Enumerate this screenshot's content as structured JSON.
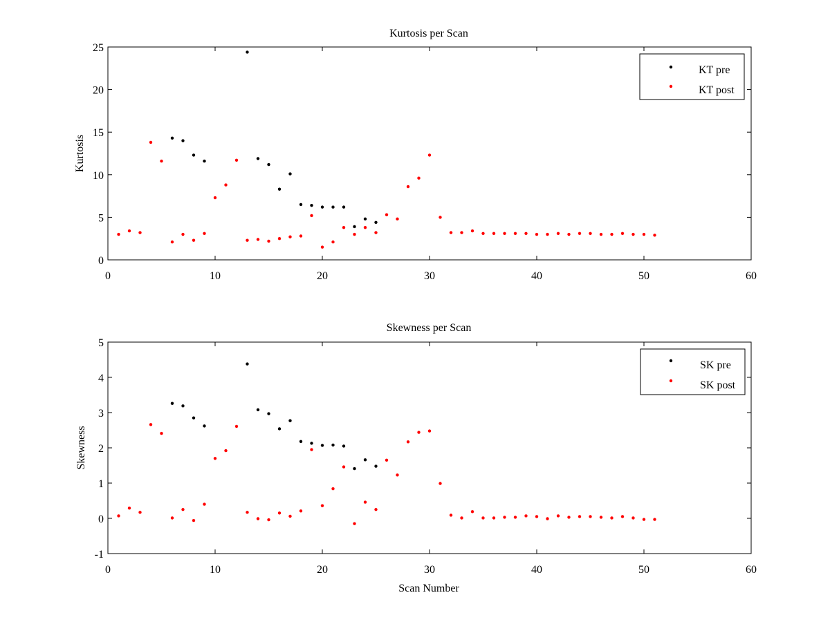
{
  "chart_data": [
    {
      "type": "scatter",
      "title": "Kurtosis per Scan",
      "xlabel": "",
      "ylabel": "Kurtosis",
      "xlim": [
        0,
        60
      ],
      "ylim": [
        0,
        25
      ],
      "xticks": [
        "0",
        "10",
        "20",
        "30",
        "40",
        "50",
        "60"
      ],
      "yticks": [
        "0",
        "5",
        "10",
        "15",
        "20",
        "25"
      ],
      "legend_position": "top-right",
      "grid": false,
      "series": [
        {
          "name": "KT pre",
          "color": "#000000",
          "x": [
            6,
            7,
            8,
            9,
            13,
            14,
            15,
            16,
            17,
            18,
            19,
            20,
            21,
            22,
            23,
            24,
            25
          ],
          "y": [
            14.3,
            14.0,
            12.3,
            11.6,
            24.4,
            11.9,
            11.2,
            8.3,
            10.1,
            6.5,
            6.4,
            6.2,
            6.2,
            6.2,
            3.9,
            4.8,
            4.4
          ]
        },
        {
          "name": "KT post",
          "color": "#ff0000",
          "x": [
            1,
            2,
            3,
            4,
            5,
            6,
            7,
            8,
            9,
            10,
            11,
            12,
            13,
            14,
            15,
            16,
            17,
            18,
            19,
            20,
            21,
            22,
            23,
            24,
            25,
            26,
            27,
            28,
            29,
            30,
            31,
            32,
            33,
            34,
            35,
            36,
            37,
            38,
            39,
            40,
            41,
            42,
            43,
            44,
            45,
            46,
            47,
            48,
            49,
            50,
            51
          ],
          "y": [
            3.0,
            3.4,
            3.2,
            13.8,
            11.6,
            2.1,
            3.0,
            2.3,
            3.1,
            7.3,
            8.8,
            11.7,
            2.3,
            2.4,
            2.2,
            2.5,
            2.7,
            2.8,
            5.2,
            1.5,
            2.1,
            3.8,
            3.0,
            3.8,
            3.2,
            5.3,
            4.8,
            8.6,
            9.6,
            12.3,
            5.0,
            3.2,
            3.2,
            3.4,
            3.1,
            3.1,
            3.1,
            3.1,
            3.1,
            3.0,
            3.0,
            3.1,
            3.0,
            3.1,
            3.1,
            3.0,
            3.0,
            3.1,
            3.0,
            3.0,
            2.9
          ]
        }
      ]
    },
    {
      "type": "scatter",
      "title": "Skewness per Scan",
      "xlabel": "Scan Number",
      "ylabel": "Skewness",
      "xlim": [
        0,
        60
      ],
      "ylim": [
        -1,
        5
      ],
      "xticks": [
        "0",
        "10",
        "20",
        "30",
        "40",
        "50",
        "60"
      ],
      "yticks": [
        "-1",
        "0",
        "1",
        "2",
        "3",
        "4",
        "5"
      ],
      "legend_position": "top-right",
      "grid": false,
      "series": [
        {
          "name": "SK pre",
          "color": "#000000",
          "x": [
            6,
            7,
            8,
            9,
            13,
            14,
            15,
            16,
            17,
            18,
            19,
            20,
            21,
            22,
            23,
            24,
            25
          ],
          "y": [
            3.26,
            3.19,
            2.85,
            2.62,
            4.38,
            3.08,
            2.97,
            2.54,
            2.77,
            2.18,
            2.13,
            2.07,
            2.08,
            2.05,
            1.41,
            1.66,
            1.48
          ]
        },
        {
          "name": "SK post",
          "color": "#ff0000",
          "x": [
            1,
            2,
            3,
            4,
            5,
            6,
            7,
            8,
            9,
            10,
            11,
            12,
            13,
            14,
            15,
            16,
            17,
            18,
            19,
            20,
            21,
            22,
            23,
            24,
            25,
            26,
            27,
            28,
            29,
            30,
            31,
            32,
            33,
            34,
            35,
            36,
            37,
            38,
            39,
            40,
            41,
            42,
            43,
            44,
            45,
            46,
            47,
            48,
            49,
            50,
            51
          ],
          "y": [
            0.07,
            0.29,
            0.17,
            2.66,
            2.41,
            0.01,
            0.25,
            -0.06,
            0.4,
            1.7,
            1.92,
            2.61,
            0.17,
            -0.01,
            -0.04,
            0.15,
            0.06,
            0.21,
            1.95,
            0.36,
            0.84,
            1.46,
            -0.15,
            0.46,
            0.25,
            1.65,
            1.23,
            2.17,
            2.44,
            2.48,
            0.99,
            0.09,
            0.01,
            0.19,
            0.01,
            0.01,
            0.03,
            0.03,
            0.07,
            0.05,
            -0.01,
            0.07,
            0.03,
            0.05,
            0.05,
            0.03,
            0.01,
            0.05,
            0.01,
            -0.03,
            -0.03
          ]
        }
      ]
    }
  ]
}
